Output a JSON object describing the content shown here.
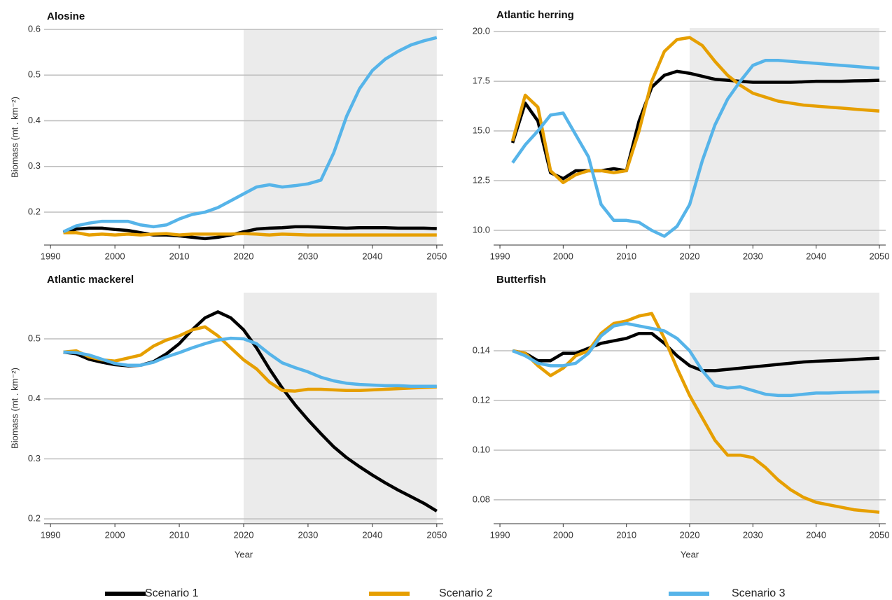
{
  "legend": [
    {
      "name": "Scenario 1",
      "color": "#000000"
    },
    {
      "name": "Scenario 2",
      "color": "#e69f00"
    },
    {
      "name": "Scenario 3",
      "color": "#56b4e9"
    }
  ],
  "chart_data": [
    {
      "type": "line",
      "title": "Alosine",
      "ylabel": "Biomass (mt . km⁻²)",
      "x": [
        1992,
        1994,
        1996,
        1998,
        2000,
        2002,
        2004,
        2006,
        2008,
        2010,
        2012,
        2014,
        2016,
        2018,
        2020,
        2022,
        2024,
        2026,
        2028,
        2030,
        2032,
        2034,
        2036,
        2038,
        2040,
        2042,
        2044,
        2046,
        2048,
        2050
      ],
      "series": [
        {
          "values": [
            0.155,
            0.163,
            0.165,
            0.165,
            0.162,
            0.16,
            0.155,
            0.15,
            0.15,
            0.148,
            0.145,
            0.142,
            0.145,
            0.15,
            0.157,
            0.163,
            0.165,
            0.166,
            0.168,
            0.168,
            0.167,
            0.166,
            0.165,
            0.166,
            0.166,
            0.166,
            0.165,
            0.165,
            0.165,
            0.164
          ]
        },
        {
          "values": [
            0.155,
            0.155,
            0.15,
            0.152,
            0.15,
            0.152,
            0.15,
            0.152,
            0.153,
            0.15,
            0.152,
            0.152,
            0.152,
            0.152,
            0.153,
            0.152,
            0.15,
            0.152,
            0.151,
            0.15,
            0.15,
            0.15,
            0.15,
            0.15,
            0.15,
            0.15,
            0.15,
            0.15,
            0.15,
            0.15
          ]
        },
        {
          "values": [
            0.157,
            0.17,
            0.176,
            0.18,
            0.18,
            0.18,
            0.172,
            0.168,
            0.172,
            0.185,
            0.195,
            0.2,
            0.21,
            0.225,
            0.24,
            0.255,
            0.26,
            0.255,
            0.258,
            0.262,
            0.27,
            0.33,
            0.41,
            0.47,
            0.51,
            0.535,
            0.552,
            0.566,
            0.575,
            0.582
          ]
        }
      ],
      "xlim": [
        1989,
        2051
      ],
      "xticks": [
        1990,
        2000,
        2010,
        2020,
        2030,
        2040,
        2050
      ],
      "ylim": [
        0.128,
        0.6
      ],
      "yticks": [
        0.2,
        0.3,
        0.4,
        0.5,
        0.6
      ],
      "shaded_x": [
        2020,
        2050
      ],
      "grid": true
    },
    {
      "type": "line",
      "title": "Atlantic herring",
      "x": [
        1992,
        1994,
        1996,
        1998,
        2000,
        2002,
        2004,
        2006,
        2008,
        2010,
        2012,
        2014,
        2016,
        2018,
        2020,
        2022,
        2024,
        2026,
        2028,
        2030,
        2032,
        2034,
        2036,
        2038,
        2040,
        2042,
        2044,
        2046,
        2048,
        2050
      ],
      "series": [
        {
          "values": [
            14.4,
            16.4,
            15.5,
            12.9,
            12.6,
            13.0,
            13.0,
            13.0,
            13.1,
            13.0,
            15.5,
            17.2,
            17.8,
            18.0,
            17.9,
            17.75,
            17.6,
            17.55,
            17.5,
            17.45,
            17.45,
            17.45,
            17.45,
            17.47,
            17.5,
            17.5,
            17.5,
            17.52,
            17.53,
            17.55
          ]
        },
        {
          "values": [
            14.5,
            16.8,
            16.2,
            13.0,
            12.4,
            12.8,
            13.0,
            13.0,
            12.9,
            13.0,
            15.0,
            17.5,
            19.0,
            19.6,
            19.7,
            19.3,
            18.5,
            17.8,
            17.3,
            16.9,
            16.7,
            16.5,
            16.4,
            16.3,
            16.25,
            16.2,
            16.15,
            16.1,
            16.05,
            16.0
          ]
        },
        {
          "values": [
            13.4,
            14.3,
            15.0,
            15.8,
            15.9,
            14.8,
            13.7,
            11.3,
            10.5,
            10.5,
            10.4,
            10.0,
            9.7,
            10.2,
            11.3,
            13.5,
            15.3,
            16.6,
            17.5,
            18.3,
            18.55,
            18.55,
            18.5,
            18.45,
            18.4,
            18.35,
            18.3,
            18.25,
            18.2,
            18.15
          ]
        }
      ],
      "xlim": [
        1989,
        2051
      ],
      "xticks": [
        1990,
        2000,
        2010,
        2020,
        2030,
        2040,
        2050
      ],
      "ylim": [
        9.26,
        20.18
      ],
      "yticks": [
        {
          "value": 10,
          "label": "10.0"
        },
        12.5,
        {
          "value": 15,
          "label": "15.0"
        },
        17.5,
        {
          "value": 20,
          "label": "20.0"
        }
      ],
      "shaded_x": [
        2020,
        2050
      ],
      "grid": true
    },
    {
      "type": "line",
      "title": "Atlantic mackerel",
      "ylabel": "Biomass (mt . km⁻²)",
      "xlabel": "Year",
      "x": [
        1992,
        1994,
        1996,
        1998,
        2000,
        2002,
        2004,
        2006,
        2008,
        2010,
        2012,
        2014,
        2016,
        2018,
        2020,
        2022,
        2024,
        2026,
        2028,
        2030,
        2032,
        2034,
        2036,
        2038,
        2040,
        2042,
        2044,
        2046,
        2048,
        2050
      ],
      "series": [
        {
          "values": [
            0.478,
            0.475,
            0.466,
            0.461,
            0.457,
            0.455,
            0.456,
            0.462,
            0.475,
            0.492,
            0.515,
            0.535,
            0.545,
            0.535,
            0.515,
            0.485,
            0.45,
            0.418,
            0.39,
            0.365,
            0.342,
            0.32,
            0.302,
            0.287,
            0.273,
            0.26,
            0.248,
            0.237,
            0.226,
            0.213
          ]
        },
        {
          "values": [
            0.478,
            0.48,
            0.47,
            0.465,
            0.463,
            0.468,
            0.473,
            0.488,
            0.498,
            0.505,
            0.515,
            0.52,
            0.505,
            0.485,
            0.465,
            0.45,
            0.428,
            0.414,
            0.413,
            0.416,
            0.416,
            0.415,
            0.414,
            0.414,
            0.415,
            0.416,
            0.417,
            0.418,
            0.419,
            0.42
          ]
        },
        {
          "values": [
            0.478,
            0.477,
            0.473,
            0.466,
            0.459,
            0.456,
            0.456,
            0.461,
            0.47,
            0.477,
            0.485,
            0.492,
            0.498,
            0.501,
            0.5,
            0.492,
            0.475,
            0.46,
            0.452,
            0.445,
            0.436,
            0.43,
            0.426,
            0.424,
            0.423,
            0.422,
            0.422,
            0.421,
            0.421,
            0.421
          ]
        }
      ],
      "xlim": [
        1989,
        2051
      ],
      "xticks": [
        1990,
        2000,
        2010,
        2020,
        2030,
        2040,
        2050
      ],
      "ylim": [
        0.192,
        0.577
      ],
      "yticks": [
        0.2,
        0.3,
        0.4,
        0.5
      ],
      "shaded_x": [
        2020,
        2050
      ],
      "grid": true
    },
    {
      "type": "line",
      "title": "Butterfish",
      "xlabel": "Year",
      "x": [
        1992,
        1994,
        1996,
        1998,
        2000,
        2002,
        2004,
        2006,
        2008,
        2010,
        2012,
        2014,
        2016,
        2018,
        2020,
        2022,
        2024,
        2026,
        2028,
        2030,
        2032,
        2034,
        2036,
        2038,
        2040,
        2042,
        2044,
        2046,
        2048,
        2050
      ],
      "series": [
        {
          "values": [
            0.14,
            0.139,
            0.136,
            0.136,
            0.139,
            0.139,
            0.141,
            0.143,
            0.144,
            0.145,
            0.147,
            0.147,
            0.143,
            0.138,
            0.134,
            0.132,
            0.132,
            0.1325,
            0.133,
            0.1335,
            0.134,
            0.1345,
            0.135,
            0.1355,
            0.1358,
            0.136,
            0.1362,
            0.1365,
            0.1368,
            0.137
          ]
        },
        {
          "values": [
            0.14,
            0.139,
            0.134,
            0.13,
            0.133,
            0.138,
            0.14,
            0.147,
            0.151,
            0.152,
            0.154,
            0.155,
            0.145,
            0.133,
            0.122,
            0.113,
            0.104,
            0.098,
            0.098,
            0.097,
            0.093,
            0.088,
            0.084,
            0.081,
            0.079,
            0.078,
            0.077,
            0.076,
            0.0755,
            0.075
          ]
        },
        {
          "values": [
            0.14,
            0.138,
            0.135,
            0.134,
            0.134,
            0.135,
            0.139,
            0.146,
            0.15,
            0.151,
            0.15,
            0.149,
            0.148,
            0.145,
            0.14,
            0.132,
            0.126,
            0.125,
            0.1255,
            0.124,
            0.1225,
            0.122,
            0.122,
            0.1225,
            0.123,
            0.123,
            0.1232,
            0.1233,
            0.1234,
            0.1235
          ]
        }
      ],
      "xlim": [
        1989,
        2051
      ],
      "xticks": [
        1990,
        2000,
        2010,
        2020,
        2030,
        2040,
        2050
      ],
      "ylim": [
        0.0704,
        0.1634
      ],
      "yticks": [
        0.08,
        {
          "value": 0.1,
          "label": "0.10"
        },
        0.12,
        0.14
      ],
      "shaded_x": [
        2020,
        2050
      ],
      "grid": true
    }
  ]
}
